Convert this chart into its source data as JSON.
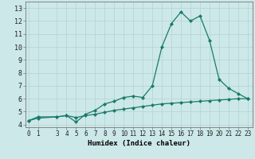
{
  "xlabel": "Humidex (Indice chaleur)",
  "bg_color": "#cce8e8",
  "line_color": "#1a7a6a",
  "grid_color": "#b8d4d4",
  "x_ticks": [
    0,
    1,
    3,
    4,
    5,
    6,
    7,
    8,
    9,
    10,
    11,
    12,
    13,
    14,
    15,
    16,
    17,
    18,
    19,
    20,
    21,
    22,
    23
  ],
  "y_ticks": [
    4,
    5,
    6,
    7,
    8,
    9,
    10,
    11,
    12,
    13
  ],
  "xlim": [
    -0.3,
    23.5
  ],
  "ylim": [
    3.8,
    13.5
  ],
  "line1_x": [
    0,
    1,
    3,
    4,
    5,
    6,
    7,
    8,
    9,
    10,
    11,
    12,
    13,
    14,
    15,
    16,
    17,
    18,
    19,
    20,
    21,
    22,
    23
  ],
  "line1_y": [
    4.3,
    4.6,
    4.6,
    4.7,
    4.2,
    4.8,
    5.1,
    5.6,
    5.8,
    6.1,
    6.2,
    6.1,
    7.0,
    10.0,
    11.8,
    12.7,
    12.0,
    12.4,
    10.5,
    7.5,
    6.8,
    6.4,
    6.0
  ],
  "line2_x": [
    0,
    1,
    3,
    4,
    5,
    6,
    7,
    8,
    9,
    10,
    11,
    12,
    13,
    14,
    15,
    16,
    17,
    18,
    19,
    20,
    21,
    22,
    23
  ],
  "line2_y": [
    4.3,
    4.5,
    4.6,
    4.7,
    4.55,
    4.7,
    4.8,
    4.95,
    5.1,
    5.2,
    5.3,
    5.4,
    5.5,
    5.6,
    5.65,
    5.7,
    5.75,
    5.8,
    5.85,
    5.9,
    5.95,
    6.0,
    6.0
  ],
  "figsize": [
    3.2,
    2.0
  ],
  "dpi": 100
}
